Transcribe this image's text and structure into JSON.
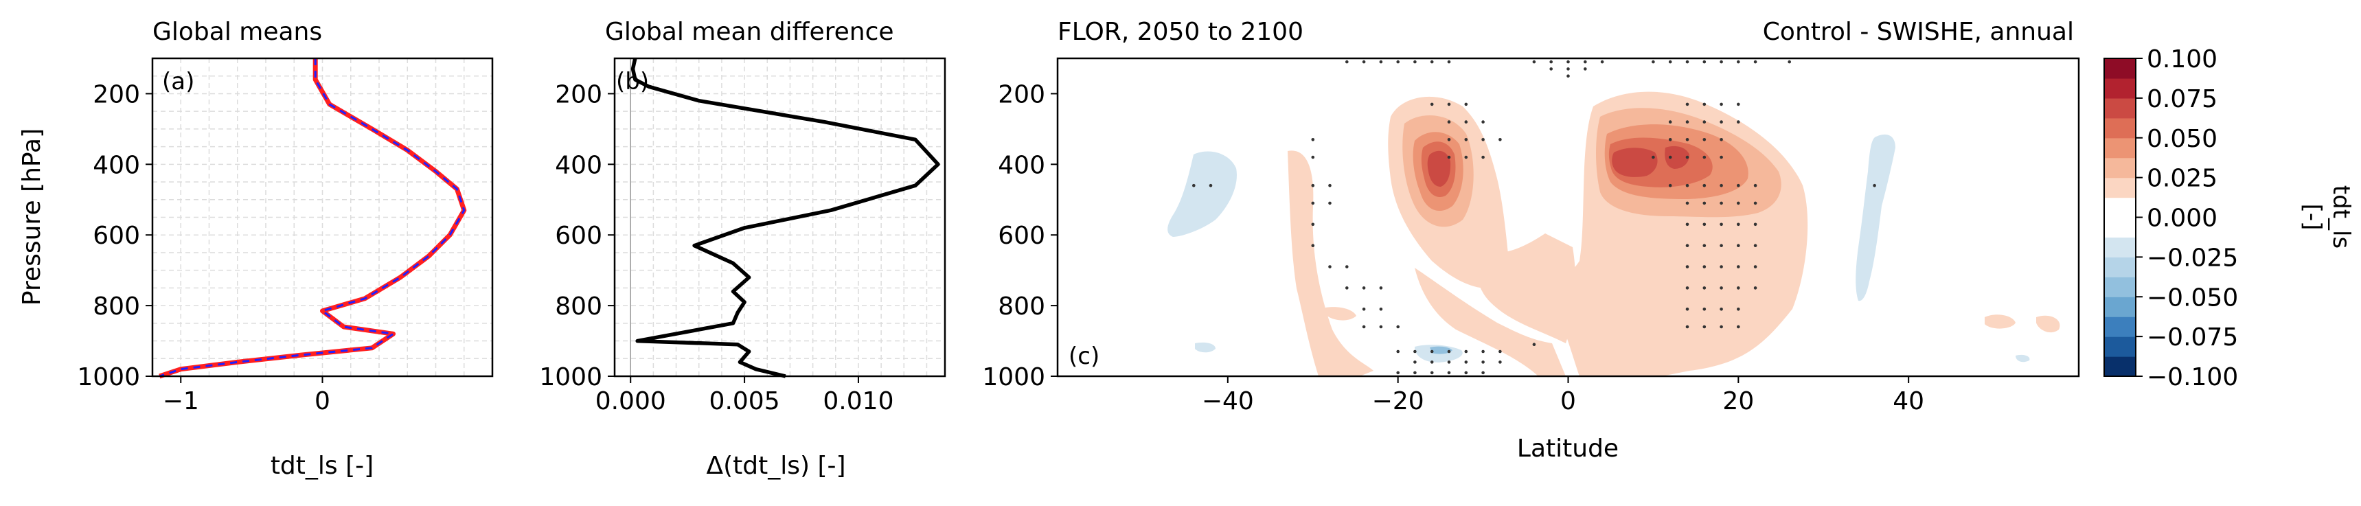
{
  "chart_data": [
    {
      "type": "line",
      "title": "Global means",
      "panel_label": "(a)",
      "xlabel": "tdt_ls [-]",
      "ylabel": "Pressure [hPa]",
      "xlim": [
        -1.2,
        1.2
      ],
      "ylim": [
        1000,
        100
      ],
      "y_inverted": true,
      "grid": true,
      "xticks": [
        -1,
        0
      ],
      "xtick_labels": [
        "−1",
        "0"
      ],
      "yticks": [
        200,
        400,
        600,
        800,
        1000
      ],
      "ytick_labels": [
        "200",
        "400",
        "600",
        "800",
        "1000"
      ],
      "colors": {
        "series_a": "#ff2020",
        "series_b": "#2020ff"
      },
      "series": [
        {
          "values": [
            [
              -0.05,
              100
            ],
            [
              -0.05,
              160
            ],
            [
              0.05,
              230
            ],
            [
              0.35,
              300
            ],
            [
              0.6,
              360
            ],
            [
              0.8,
              420
            ],
            [
              0.95,
              470
            ],
            [
              1.0,
              530
            ],
            [
              0.9,
              600
            ],
            [
              0.75,
              660
            ],
            [
              0.55,
              720
            ],
            [
              0.3,
              780
            ],
            [
              0.0,
              815
            ],
            [
              0.15,
              860
            ],
            [
              0.5,
              880
            ],
            [
              0.35,
              920
            ],
            [
              -0.15,
              940
            ],
            [
              -0.6,
              960
            ],
            [
              -1.0,
              980
            ],
            [
              -1.15,
              1000
            ]
          ]
        },
        {
          "values": [
            [
              -0.05,
              100
            ],
            [
              -0.05,
              160
            ],
            [
              0.05,
              230
            ],
            [
              0.35,
              300
            ],
            [
              0.6,
              360
            ],
            [
              0.8,
              420
            ],
            [
              0.95,
              470
            ],
            [
              1.0,
              530
            ],
            [
              0.9,
              600
            ],
            [
              0.75,
              660
            ],
            [
              0.55,
              720
            ],
            [
              0.3,
              780
            ],
            [
              0.0,
              815
            ],
            [
              0.15,
              860
            ],
            [
              0.5,
              880
            ],
            [
              0.35,
              920
            ],
            [
              -0.15,
              940
            ],
            [
              -0.6,
              960
            ],
            [
              -1.0,
              980
            ],
            [
              -1.15,
              1000
            ]
          ]
        }
      ]
    },
    {
      "type": "line",
      "title": "Global mean difference",
      "panel_label": "(b)",
      "xlabel": "Δ(tdt_ls) [-]",
      "xlim": [
        -0.0007,
        0.0138
      ],
      "ylim": [
        1000,
        100
      ],
      "y_inverted": true,
      "grid": true,
      "xticks": [
        0.0,
        0.005,
        0.01
      ],
      "xtick_labels": [
        "0.000",
        "0.005",
        "0.010"
      ],
      "yticks": [
        200,
        400,
        600,
        800,
        1000
      ],
      "ytick_labels": [
        "200",
        "400",
        "600",
        "800",
        "1000"
      ],
      "zero_line": 0.0,
      "series": [
        {
          "values": [
            [
              0.0002,
              100
            ],
            [
              0.0001,
              130
            ],
            [
              0.0002,
              160
            ],
            [
              0.0008,
              180
            ],
            [
              0.003,
              220
            ],
            [
              0.0085,
              280
            ],
            [
              0.0125,
              330
            ],
            [
              0.0135,
              400
            ],
            [
              0.0125,
              460
            ],
            [
              0.0088,
              530
            ],
            [
              0.005,
              580
            ],
            [
              0.0028,
              630
            ],
            [
              0.0045,
              680
            ],
            [
              0.0052,
              720
            ],
            [
              0.0045,
              760
            ],
            [
              0.005,
              790
            ],
            [
              0.0047,
              820
            ],
            [
              0.0045,
              850
            ],
            [
              0.0003,
              900
            ],
            [
              0.0047,
              910
            ],
            [
              0.0052,
              930
            ],
            [
              0.0048,
              960
            ],
            [
              0.0055,
              980
            ],
            [
              0.0068,
              1000
            ]
          ]
        }
      ]
    },
    {
      "type": "contour",
      "title_left": "FLOR, 2050 to 2100",
      "title_right": "Control - SWISHE, annual",
      "panel_label": "(c)",
      "xlabel": "Latitude",
      "xlim": [
        -60,
        60
      ],
      "ylim": [
        1000,
        100
      ],
      "y_inverted": true,
      "xticks": [
        -40,
        -20,
        0,
        20,
        40
      ],
      "xtick_labels": [
        "−40",
        "−20",
        "0",
        "20",
        "40"
      ],
      "yticks": [
        200,
        400,
        600,
        800,
        1000
      ],
      "ytick_labels": [
        "200",
        "400",
        "600",
        "800",
        "1000"
      ],
      "colorbar": {
        "label": "tdt_ls\n[-]",
        "levels": [
          -0.1,
          -0.0875,
          -0.075,
          -0.0625,
          -0.05,
          -0.0375,
          -0.025,
          -0.0125,
          0.0,
          0.0125,
          0.025,
          0.0375,
          0.05,
          0.0625,
          0.075,
          0.0875,
          0.1
        ],
        "tick_values": [
          0.1,
          0.075,
          0.05,
          0.025,
          0.0,
          -0.025,
          -0.05,
          -0.075,
          -0.1
        ],
        "tick_labels": [
          "0.100",
          "0.075",
          "0.050",
          "0.025",
          "0.000",
          "−0.025",
          "−0.050",
          "−0.075",
          "−0.100"
        ],
        "colors": [
          "#08306b",
          "#1c5a9c",
          "#3c7fbd",
          "#6aa6d0",
          "#92c0de",
          "#b5d4e8",
          "#d3e5f0",
          "#ffffff",
          "#ffffff",
          "#fbd6c2",
          "#f5b89b",
          "#ec9474",
          "#de6e56",
          "#cb4a43",
          "#b2222f",
          "#8e0c26"
        ]
      },
      "features": [
        {
          "name": "upper-tropics-south-max",
          "lat": -10,
          "p": 400,
          "value": 0.06
        },
        {
          "name": "upper-tropics-north-max",
          "lat": 12,
          "p": 400,
          "value": 0.06
        },
        {
          "name": "southern-midlat-negative",
          "lat": -44,
          "p": 500,
          "value": -0.02
        },
        {
          "name": "northern-midlat-negative",
          "lat": 37,
          "p": 500,
          "value": -0.02
        },
        {
          "name": "near-surface-south-negative",
          "lat": -15,
          "p": 920,
          "value": -0.04
        }
      ]
    }
  ]
}
